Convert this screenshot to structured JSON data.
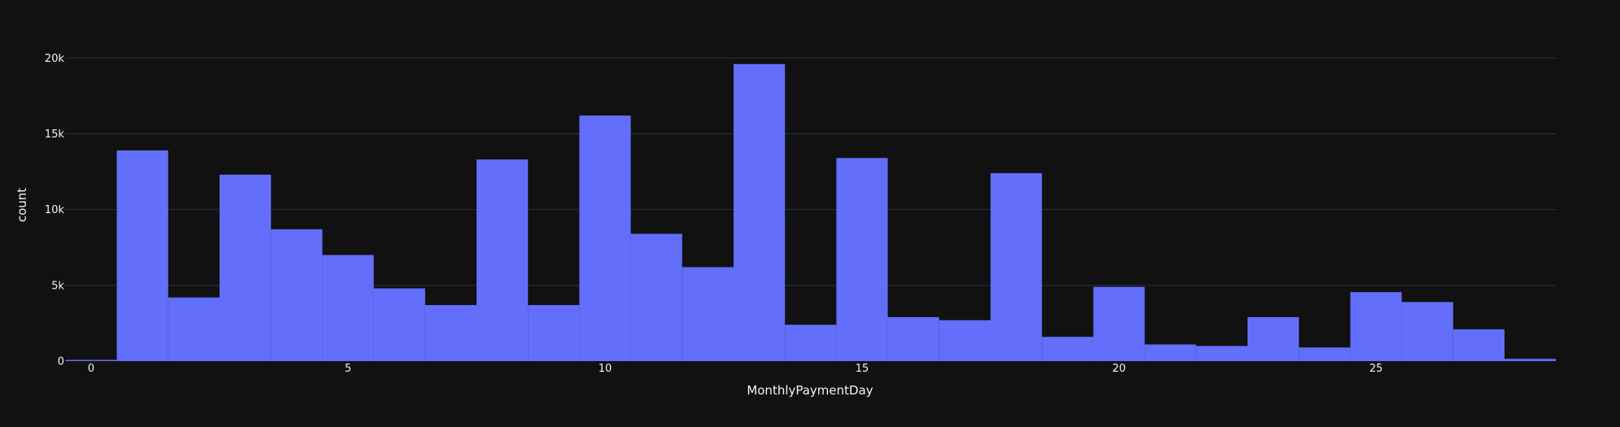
{
  "chart_data": {
    "type": "bar",
    "title": "",
    "xlabel": "MonthlyPaymentDay",
    "ylabel": "count",
    "bar_color": "#636efa",
    "background_color": "#111111",
    "grid_color": "#283442",
    "text_color": "#f2f5fa",
    "grid": true,
    "xlim": [
      -0.5,
      28.5
    ],
    "ylim": [
      0,
      21000
    ],
    "x_ticks": [
      0,
      5,
      10,
      15,
      20,
      25
    ],
    "x_tick_labels": [
      "0",
      "5",
      "10",
      "15",
      "20",
      "25"
    ],
    "y_ticks": [
      0,
      5000,
      10000,
      15000,
      20000
    ],
    "y_tick_labels": [
      "0",
      "5k",
      "10k",
      "15k",
      "20k"
    ],
    "categories": [
      0,
      1,
      2,
      3,
      4,
      5,
      6,
      7,
      8,
      9,
      10,
      11,
      12,
      13,
      14,
      15,
      16,
      17,
      18,
      19,
      20,
      21,
      22,
      23,
      24,
      25,
      26,
      27,
      28
    ],
    "values": [
      80,
      13900,
      4200,
      12300,
      8700,
      7000,
      4800,
      3700,
      13300,
      3700,
      16200,
      8400,
      6200,
      19600,
      2400,
      13400,
      2900,
      2700,
      12400,
      1600,
      4900,
      1100,
      1000,
      2900,
      900,
      4550,
      3900,
      2100,
      150
    ]
  }
}
